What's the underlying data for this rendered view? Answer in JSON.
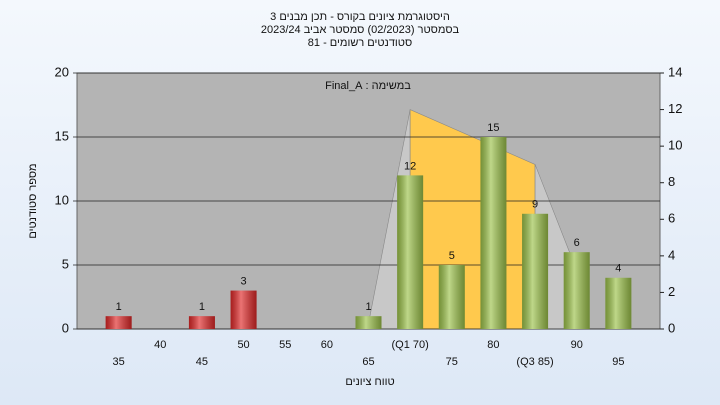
{
  "chart_data": {
    "type": "bar",
    "title_lines": [
      "היסטוגרמת ציונים בקורס - תכן מבנים 3",
      "בסמסטר (02/2023) סמסטר אביב 2023/24",
      "סטודנטים רשומים - 81"
    ],
    "annotation": "במשימה : Final_A",
    "ylabel": "מספר סטודנטים",
    "xlabel": "טווח ציונים",
    "categories": [
      "35",
      "40",
      "45",
      "50",
      "55",
      "60",
      "65",
      "(Q1 70)",
      "75",
      "80",
      "(Q3 85)",
      "90",
      "95"
    ],
    "values": [
      1,
      null,
      1,
      3,
      null,
      null,
      1,
      12,
      5,
      15,
      9,
      6,
      4
    ],
    "colors": [
      "#e02828",
      null,
      "#e02828",
      "#e02828",
      null,
      null,
      "#9cc24a",
      "#9cc24a",
      "#9cc24a",
      "#9cc24a",
      "#9cc24a",
      "#9cc24a",
      "#9cc24a"
    ],
    "ylim": [
      0,
      20
    ],
    "yticks": [
      0,
      5,
      10,
      15,
      20
    ],
    "y2lim": [
      0,
      14
    ],
    "y2ticks": [
      0,
      2,
      4,
      6,
      8,
      10,
      12,
      14
    ],
    "distribution": {
      "axis": "y2",
      "values": [
        null,
        null,
        null,
        null,
        null,
        null,
        0.3,
        12,
        null,
        null,
        9,
        3.2,
        null
      ],
      "fill": "#ffc94d",
      "tail_fill": "#c8c8c8"
    },
    "grid": true
  }
}
